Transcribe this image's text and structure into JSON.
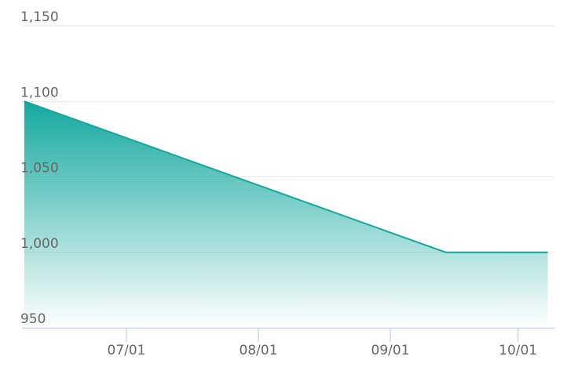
{
  "chart_data": {
    "type": "area",
    "title": "",
    "xlabel": "",
    "ylabel": "",
    "ylim": [
      950,
      1150
    ],
    "y_ticks": [
      "950",
      "1,000",
      "1,050",
      "1,100",
      "1,150"
    ],
    "y_tick_values": [
      950,
      1000,
      1050,
      1100,
      1150
    ],
    "x_ticks": [
      "07/01",
      "08/01",
      "09/01",
      "10/01"
    ],
    "grid": true,
    "legend": "none",
    "series": [
      {
        "x": [
          "06/07",
          "09/14",
          "10/08"
        ],
        "values": [
          1100,
          1000,
          1000
        ]
      }
    ],
    "colors": {
      "line": "#13a89e",
      "fill_top": "#13a89e",
      "grid": "#e6e6e6",
      "axis": "#ccd6eb",
      "text": "#666666"
    }
  }
}
